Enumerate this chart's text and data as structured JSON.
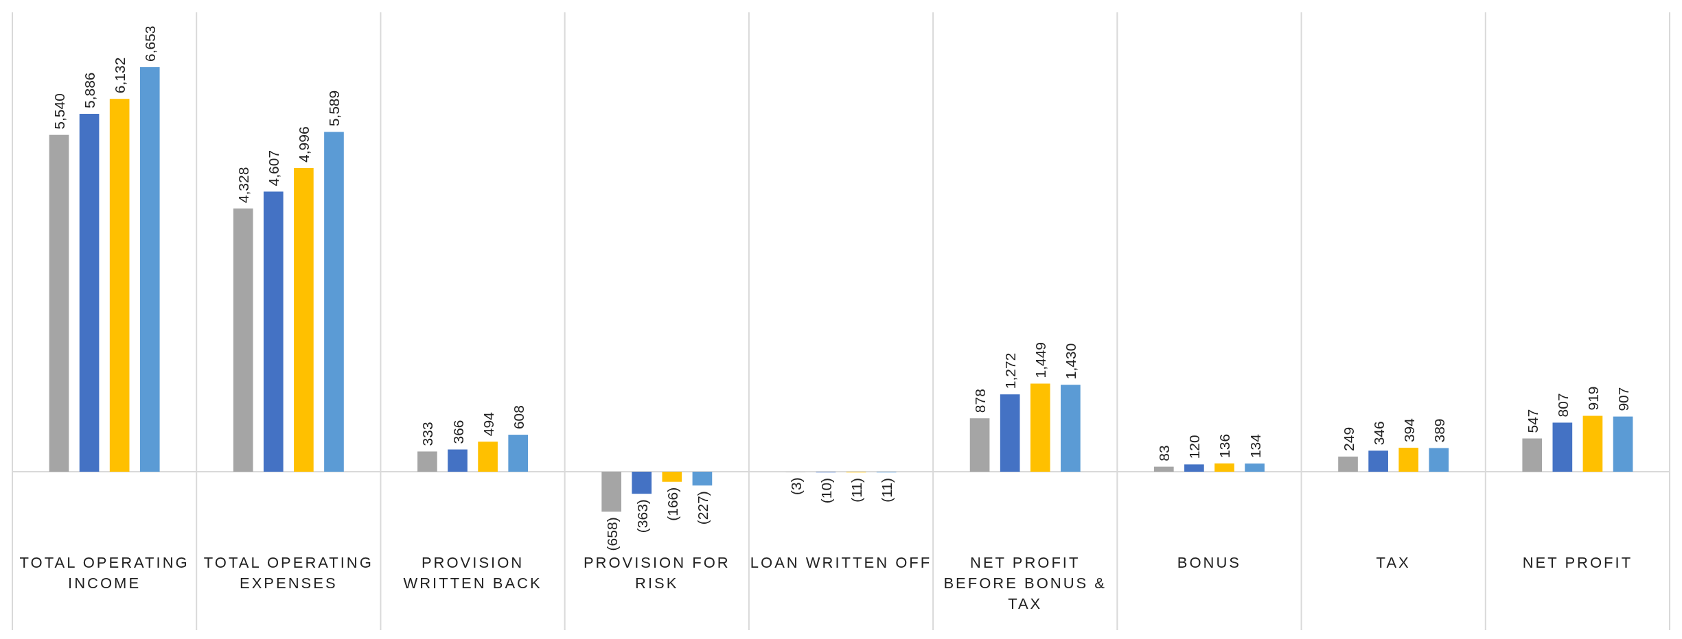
{
  "chart_data": {
    "type": "bar",
    "categories": [
      "TOTAL OPERATING INCOME",
      "TOTAL OPERATING EXPENSES",
      "PROVISION WRITTEN BACK",
      "PROVISION FOR RISK",
      "LOAN WRITTEN OFF",
      "NET PROFIT BEFORE BONUS & TAX",
      "BONUS",
      "TAX",
      "NET PROFIT"
    ],
    "series": [
      {
        "color": "#a5a5a5",
        "values": [
          5540,
          4328,
          333,
          -658,
          -3,
          878,
          83,
          249,
          547
        ],
        "value_labels": [
          "5,540",
          "4,328",
          "333",
          "(658)",
          "(3)",
          "878",
          "83",
          "249",
          "547"
        ]
      },
      {
        "color": "#4472c4",
        "values": [
          5886,
          4607,
          366,
          -363,
          -10,
          1272,
          120,
          346,
          807
        ],
        "value_labels": [
          "5,886",
          "4,607",
          "366",
          "(363)",
          "(10)",
          "1,272",
          "120",
          "346",
          "807"
        ]
      },
      {
        "color": "#ffc000",
        "values": [
          6132,
          4996,
          494,
          -166,
          -11,
          1449,
          136,
          394,
          919
        ],
        "value_labels": [
          "6,132",
          "4,996",
          "494",
          "(166)",
          "(11)",
          "1,449",
          "136",
          "394",
          "919"
        ]
      },
      {
        "color": "#5b9bd5",
        "values": [
          6653,
          5589,
          608,
          -227,
          -11,
          1430,
          134,
          389,
          907
        ],
        "value_labels": [
          "6,653",
          "5,589",
          "608",
          "(227)",
          "(11)",
          "1,430",
          "134",
          "389",
          "907"
        ]
      }
    ],
    "grid": "x"
  }
}
